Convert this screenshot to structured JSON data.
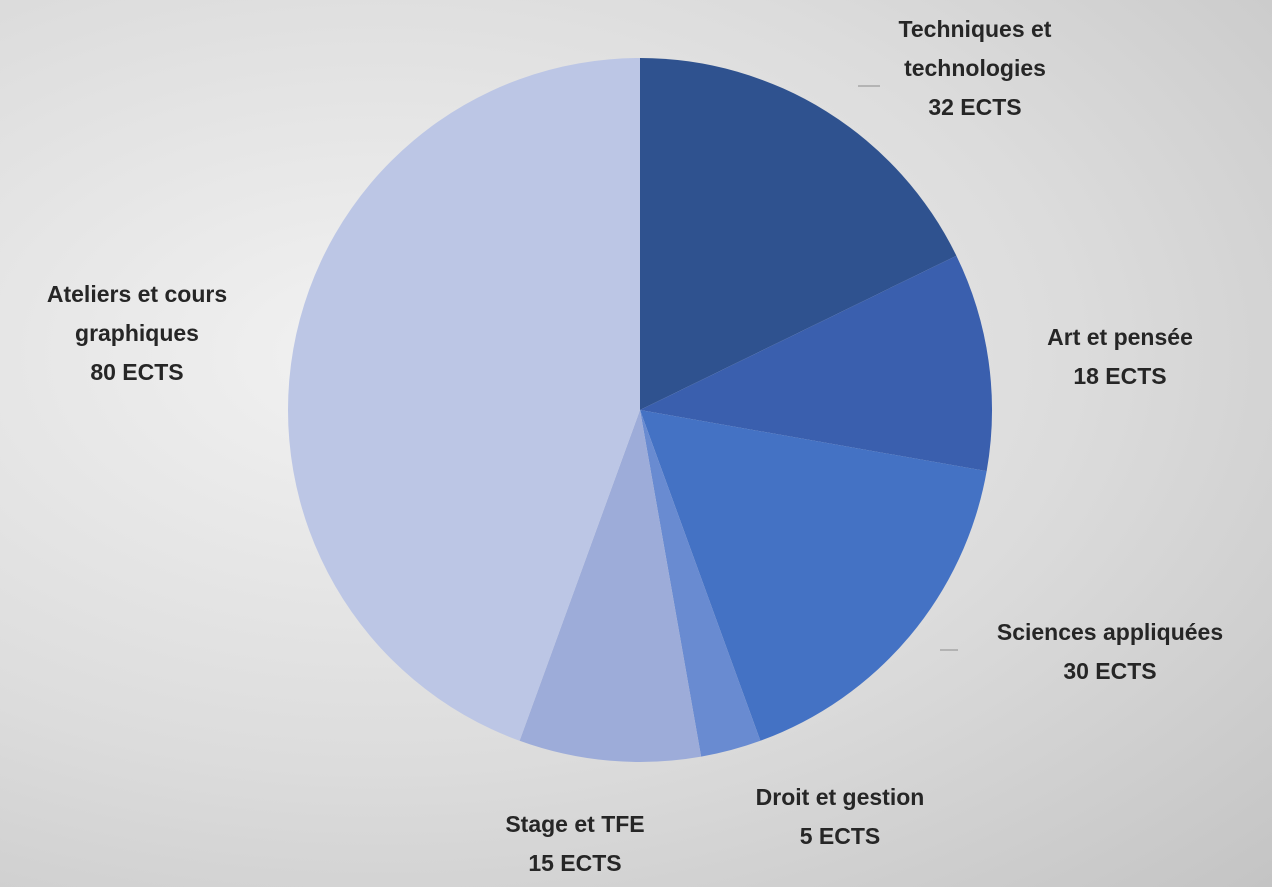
{
  "chart_data": {
    "type": "pie",
    "categories": [
      "Techniques et technologies",
      "Art et pensée",
      "Sciences appliquées",
      "Droit et gestion",
      "Stage et TFE",
      "Ateliers et cours graphiques"
    ],
    "values": [
      32,
      18,
      30,
      5,
      15,
      80
    ],
    "value_labels": [
      "32 ECTS",
      "18 ECTS",
      "30 ECTS",
      "5 ECTS",
      "15 ECTS",
      "80 ECTS"
    ],
    "colors": [
      "#2f528f",
      "#3a5fae",
      "#4472c4",
      "#698bd1",
      "#9dacd9",
      "#bcc6e5"
    ]
  }
}
